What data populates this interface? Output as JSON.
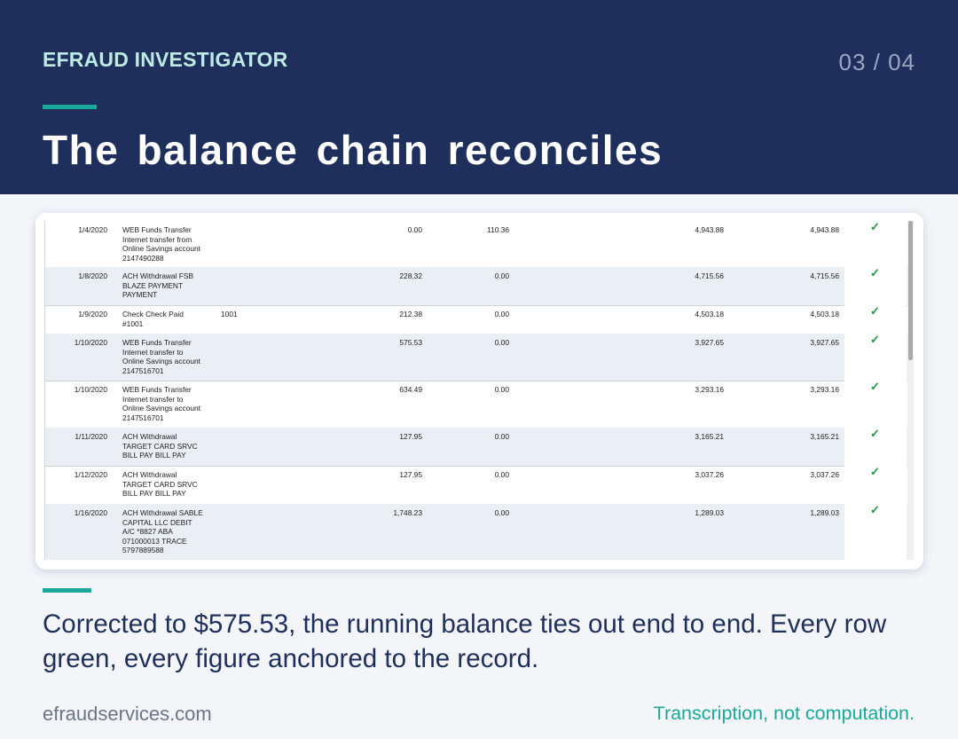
{
  "header": {
    "brand": "EFRAUD INVESTIGATOR",
    "page_indicator": "03 / 04",
    "title": "The balance chain reconciles"
  },
  "ledger": {
    "rows": [
      {
        "date": "1/4/2020",
        "description": "WEB Funds Transfer Internet transfer from Online Savings account 2147490288",
        "check_no": "",
        "debit": "0.00",
        "credit": "110.36",
        "balance": "4,943.88",
        "computed_balance": "4,943.88",
        "status": "✓"
      },
      {
        "date": "1/8/2020",
        "description": "ACH Withdrawal FSB BLAZE PAYMENT PAYMENT",
        "check_no": "",
        "debit": "228.32",
        "credit": "0.00",
        "balance": "4,715.56",
        "computed_balance": "4,715.56",
        "status": "✓"
      },
      {
        "date": "1/9/2020",
        "description": "Check Check Paid #1001",
        "check_no": "1001",
        "debit": "212.38",
        "credit": "0.00",
        "balance": "4,503.18",
        "computed_balance": "4,503.18",
        "status": "✓"
      },
      {
        "date": "1/10/2020",
        "description": "WEB Funds Transfer Internet transfer to Online Savings account 2147516701",
        "check_no": "",
        "debit": "575.53",
        "credit": "0.00",
        "balance": "3,927.65",
        "computed_balance": "3,927.65",
        "status": "✓"
      },
      {
        "date": "1/10/2020",
        "description": "WEB Funds Transfer Internet transfer to Online Savings account 2147516701",
        "check_no": "",
        "debit": "634.49",
        "credit": "0.00",
        "balance": "3,293.16",
        "computed_balance": "3,293.16",
        "status": "✓"
      },
      {
        "date": "1/11/2020",
        "description": "ACH Withdrawal TARGET CARD SRVC BILL PAY BILL PAY",
        "check_no": "",
        "debit": "127.95",
        "credit": "0.00",
        "balance": "3,165.21",
        "computed_balance": "3,165.21",
        "status": "✓"
      },
      {
        "date": "1/12/2020",
        "description": "ACH Withdrawal TARGET CARD SRVC BILL PAY BILL PAY",
        "check_no": "",
        "debit": "127.95",
        "credit": "0.00",
        "balance": "3,037.26",
        "computed_balance": "3,037.26",
        "status": "✓"
      },
      {
        "date": "1/16/2020",
        "description": "ACH Withdrawal SABLE CAPITAL LLC DEBIT A/C *8827 ABA 071000013 TRACE 5797889588",
        "check_no": "",
        "debit": "1,748.23",
        "credit": "0.00",
        "balance": "1,289.03",
        "computed_balance": "1,289.03",
        "status": "✓"
      }
    ]
  },
  "caption": "Corrected to $575.53, the running balance ties out end to end. Every row green, every figure anchored to the record.",
  "footer": {
    "website": "efraudservices.com",
    "tagline": "Transcription, not computation."
  },
  "colors": {
    "header_bg": "#1e2f5c",
    "accent": "#1aa99b",
    "check_green": "#1a9a3a",
    "row_alt": "#eaeef5"
  }
}
